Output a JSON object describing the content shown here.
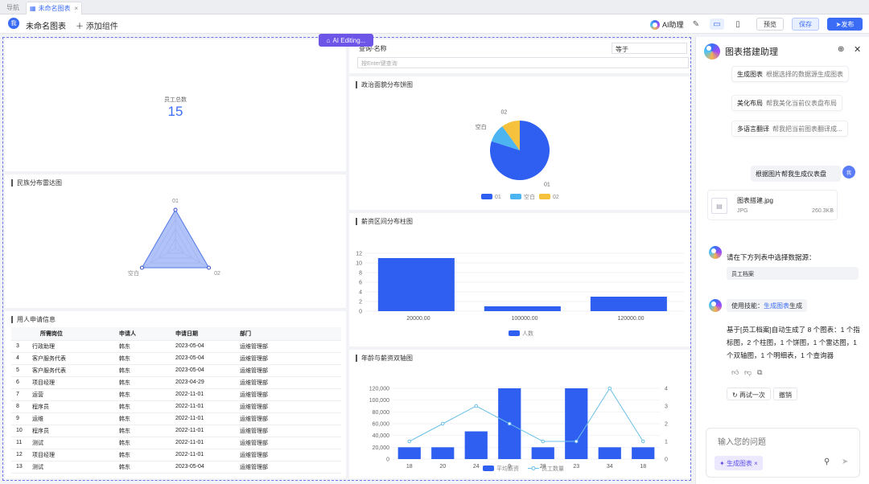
{
  "tabs": {
    "nav": "导航",
    "active": "未命名图表"
  },
  "toolbar": {
    "avatar": "我",
    "chart_name": "未命名图表",
    "add": "添加组件",
    "ai_assist": "AI助理",
    "preview": "预览",
    "save": "保存",
    "publish": "发布"
  },
  "ai_editing": "AI Editing...",
  "kpi": {
    "label": "员工总数",
    "value": "15"
  },
  "query": {
    "label": "查询-名称",
    "operator": "等于",
    "placeholder": "按Enter键查询"
  },
  "pie": {
    "title": "政治面貌分布饼图",
    "legend": [
      "01",
      "空白",
      "02"
    ],
    "labels": [
      "01",
      "空白",
      "02"
    ]
  },
  "radar": {
    "title": "民族分布雷达图",
    "axes": [
      "01",
      "02",
      "空白"
    ]
  },
  "bar": {
    "title": "薪资区间分布柱图",
    "legend": "人数"
  },
  "dual": {
    "title": "年龄与薪资双轴图",
    "legend": [
      "平均薪资",
      "员工数量"
    ]
  },
  "table": {
    "title": "用人申请信息",
    "headers": [
      "",
      "所需岗位",
      "申请人",
      "申请日期",
      "部门"
    ],
    "rows": [
      [
        "3",
        "行政助理",
        "韩东",
        "2023-05-04",
        "运维管理部"
      ],
      [
        "4",
        "客户服务代表",
        "韩东",
        "2023-05-04",
        "运维管理部"
      ],
      [
        "5",
        "客户服务代表",
        "韩东",
        "2023-05-04",
        "运维管理部"
      ],
      [
        "6",
        "项目经理",
        "韩东",
        "2023-04-29",
        "运维管理部"
      ],
      [
        "7",
        "运营",
        "韩东",
        "2022-11-01",
        "运维管理部"
      ],
      [
        "8",
        "程序员",
        "韩东",
        "2022-11-01",
        "运维管理部"
      ],
      [
        "9",
        "运维",
        "韩东",
        "2022-11-01",
        "运维管理部"
      ],
      [
        "10",
        "程序员",
        "韩东",
        "2022-11-01",
        "运维管理部"
      ],
      [
        "11",
        "测试",
        "韩东",
        "2022-11-01",
        "运维管理部"
      ],
      [
        "12",
        "项目经理",
        "韩东",
        "2022-11-01",
        "运维管理部"
      ],
      [
        "13",
        "测试",
        "韩东",
        "2023-05-04",
        "运维管理部"
      ]
    ]
  },
  "panel": {
    "title": "图表搭建助理",
    "suggestions": [
      {
        "name": "生成图表",
        "desc": "根据选择的数据源生成图表"
      },
      {
        "name": "美化布局",
        "desc": "帮我美化当前仪表盘布局"
      },
      {
        "name": "多语言翻译",
        "desc": "帮我把当前图表翻译成..."
      }
    ],
    "user_msg": "根据图片帮我生成仪表盘",
    "user_avatar": "我",
    "file": {
      "name": "图表搭建.jpg",
      "type": "JPG",
      "size": "260.3KB"
    },
    "prompt": "请在下方列表中选择数据源：",
    "datasource": "员工档案",
    "skill_prefix": "使用技能：",
    "skill_name": "生成图表",
    "skill_suffix": "生成",
    "result": "基于[员工档案]自动生成了 8 个图表：1 个指标图，2 个柱图，1 个饼图，1 个雷达图，1 个双轴图，1 个明细表，1 个查询器",
    "retry": "再试一次",
    "undo": "撤销",
    "input_placeholder": "输入您的问题",
    "chip": "生成图表"
  },
  "chart_data": [
    {
      "type": "pie",
      "title": "政治面貌分布饼图",
      "categories": [
        "01",
        "空白",
        "02"
      ],
      "values": [
        80,
        10,
        10
      ],
      "colors": [
        "#2f5ff0",
        "#4cb4f0",
        "#f6c23e"
      ]
    },
    {
      "type": "radar",
      "title": "民族分布雷达图",
      "axes": [
        "01",
        "02",
        "空白"
      ],
      "values": [
        1,
        1,
        1
      ]
    },
    {
      "type": "bar",
      "title": "薪资区间分布柱图",
      "categories": [
        "20000.00",
        "100000.00",
        "120000.00"
      ],
      "series": [
        {
          "name": "人数",
          "values": [
            11,
            1,
            3
          ]
        }
      ],
      "ylim": [
        0,
        12
      ],
      "yticks": [
        0,
        2,
        4,
        6,
        8,
        10,
        12
      ]
    },
    {
      "type": "bar",
      "title": "年龄与薪资双轴图",
      "categories": [
        "18",
        "20",
        "24",
        "0",
        "28",
        "23",
        "34",
        "18"
      ],
      "series": [
        {
          "name": "平均薪资",
          "values": [
            20000,
            20000,
            47000,
            120000,
            20000,
            120000,
            20000,
            20000
          ]
        },
        {
          "name": "员工数量",
          "type": "line",
          "values": [
            1,
            2,
            3,
            2,
            1,
            1,
            4,
            1
          ]
        }
      ],
      "ylim": [
        0,
        120000
      ],
      "yticks": [
        "0",
        "20,000",
        "40,000",
        "60,000",
        "80,000",
        "100,000",
        "120,000"
      ],
      "y2lim": [
        0,
        4
      ],
      "y2ticks": [
        "0",
        "1",
        "2",
        "3",
        "4"
      ]
    }
  ]
}
